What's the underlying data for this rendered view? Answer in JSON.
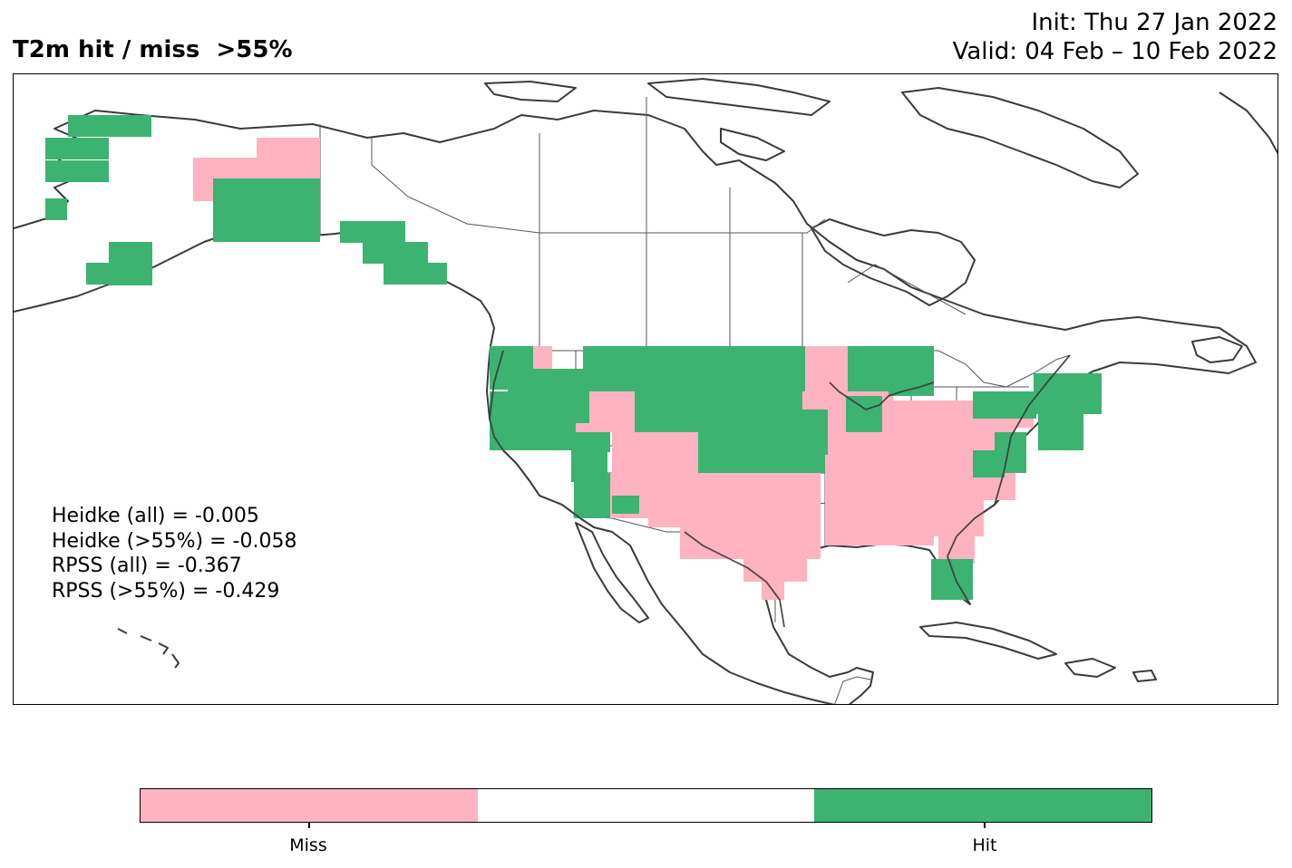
{
  "header": {
    "title": "T2m hit / miss  >55%",
    "init": "Init: Thu 27 Jan 2022",
    "valid": "Valid: 04 Feb – 10 Feb 2022"
  },
  "scores": [
    "Heidke (all) = -0.005",
    "Heidke (>55%) = -0.058",
    "RPSS (all) = -0.367",
    "RPSS (>55%) = -0.429"
  ],
  "colors": {
    "miss": "#ffb3c1",
    "neutral": "#ffffff",
    "hit": "#3cb371",
    "coast": "#3a3a3a",
    "border": "#555555"
  },
  "legend": {
    "miss_label": "Miss",
    "hit_label": "Hit"
  },
  "regions": {
    "hit": [
      "Western Alaska",
      "Southern Alaska",
      "Alaska Panhandle",
      "Pacific Northwest",
      "Northern Rockies",
      "Northern Plains",
      "Central Plains",
      "Arizona",
      "Upper Great Lakes",
      "New England",
      "Mid-Atlantic coast",
      "South Florida"
    ],
    "miss": [
      "Interior Alaska",
      "Southwest",
      "Southern Plains",
      "Texas",
      "Midwest",
      "Ohio Valley",
      "Southeast",
      "Gulf Coast"
    ]
  }
}
